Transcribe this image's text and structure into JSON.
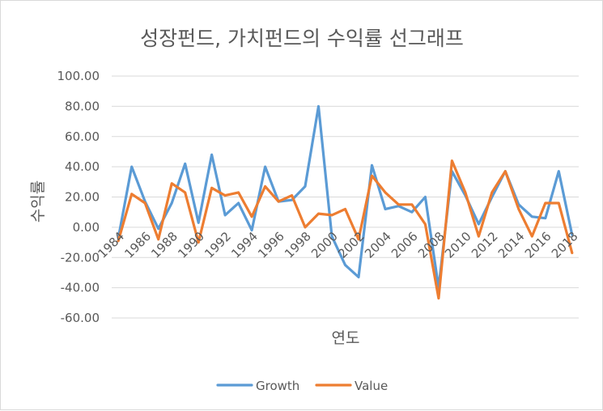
{
  "chart_data": {
    "type": "line",
    "title": "성장펀드, 가치펀드의 수익률 선그래프",
    "xlabel": "연도",
    "ylabel": "수익률",
    "ylim": [
      -60,
      100
    ],
    "ytick_step": 20,
    "ytick_labels": [
      "100.00",
      "80.00",
      "60.00",
      "40.00",
      "20.00",
      "0.00",
      "-20.00",
      "-40.00",
      "-60.00"
    ],
    "grid": true,
    "legend_position": "bottom",
    "x": [
      1984,
      1985,
      1986,
      1987,
      1988,
      1989,
      1990,
      1991,
      1992,
      1993,
      1994,
      1995,
      1996,
      1997,
      1998,
      1999,
      2000,
      2001,
      2002,
      2003,
      2004,
      2005,
      2006,
      2007,
      2008,
      2009,
      2010,
      2011,
      2012,
      2013,
      2014,
      2015,
      2016,
      2017,
      2018
    ],
    "xtick_labels": [
      "1984",
      "1986",
      "1988",
      "1990",
      "1992",
      "1994",
      "1996",
      "1998",
      "2000",
      "2002",
      "2004",
      "2006",
      "2008",
      "2010",
      "2012",
      "2014",
      "2016",
      "2018"
    ],
    "series": [
      {
        "name": "Growth",
        "color": "#5b9bd5",
        "values": [
          -7,
          40,
          17,
          -1,
          16,
          42,
          3,
          48,
          8,
          16,
          -2,
          40,
          17,
          18,
          27,
          80,
          -6,
          -25,
          -33,
          41,
          12,
          14,
          10,
          20,
          -40,
          37,
          21,
          2,
          20,
          37,
          15,
          7,
          6,
          37,
          -5
        ]
      },
      {
        "name": "Value",
        "color": "#ed7d31",
        "values": [
          -9,
          22,
          16,
          -8,
          29,
          23,
          -10,
          26,
          21,
          23,
          7,
          27,
          17,
          21,
          0,
          9,
          8,
          12,
          -8,
          34,
          23,
          15,
          15,
          2,
          -47,
          44,
          23,
          -6,
          23,
          37,
          12,
          -6,
          16,
          16,
          -17
        ]
      }
    ]
  }
}
